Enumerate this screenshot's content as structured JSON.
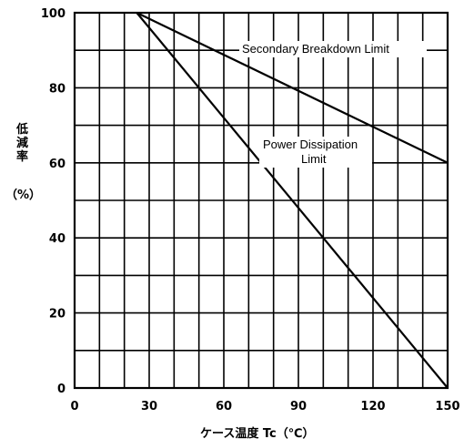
{
  "chart_data": {
    "type": "line",
    "xlabel": "ケース温度 Tc（℃）",
    "ylabel_chars": [
      "低",
      "減",
      "率"
    ],
    "ylabel_unit": "（%）",
    "xlim": [
      0,
      150
    ],
    "ylim": [
      0,
      100
    ],
    "x_ticks": [
      0,
      30,
      60,
      90,
      120,
      150
    ],
    "y_ticks": [
      0,
      20,
      40,
      60,
      80,
      100
    ],
    "x_tick_labels": [
      "0",
      "30",
      "60",
      "90",
      "120",
      "150"
    ],
    "y_tick_labels": [
      "0",
      "20",
      "40",
      "60",
      "80",
      "100"
    ],
    "grid": true,
    "series": [
      {
        "name": "Secondary Breakdown Limit",
        "x": [
          25,
          150
        ],
        "y": [
          100,
          60
        ]
      },
      {
        "name": "Power Dissipation Limit",
        "x": [
          25,
          150
        ],
        "y": [
          100,
          0
        ]
      }
    ],
    "annotations": {
      "secondary": "Secondary Breakdown Limit",
      "power_line1": "Power Dissipation",
      "power_line2": "Limit"
    }
  }
}
